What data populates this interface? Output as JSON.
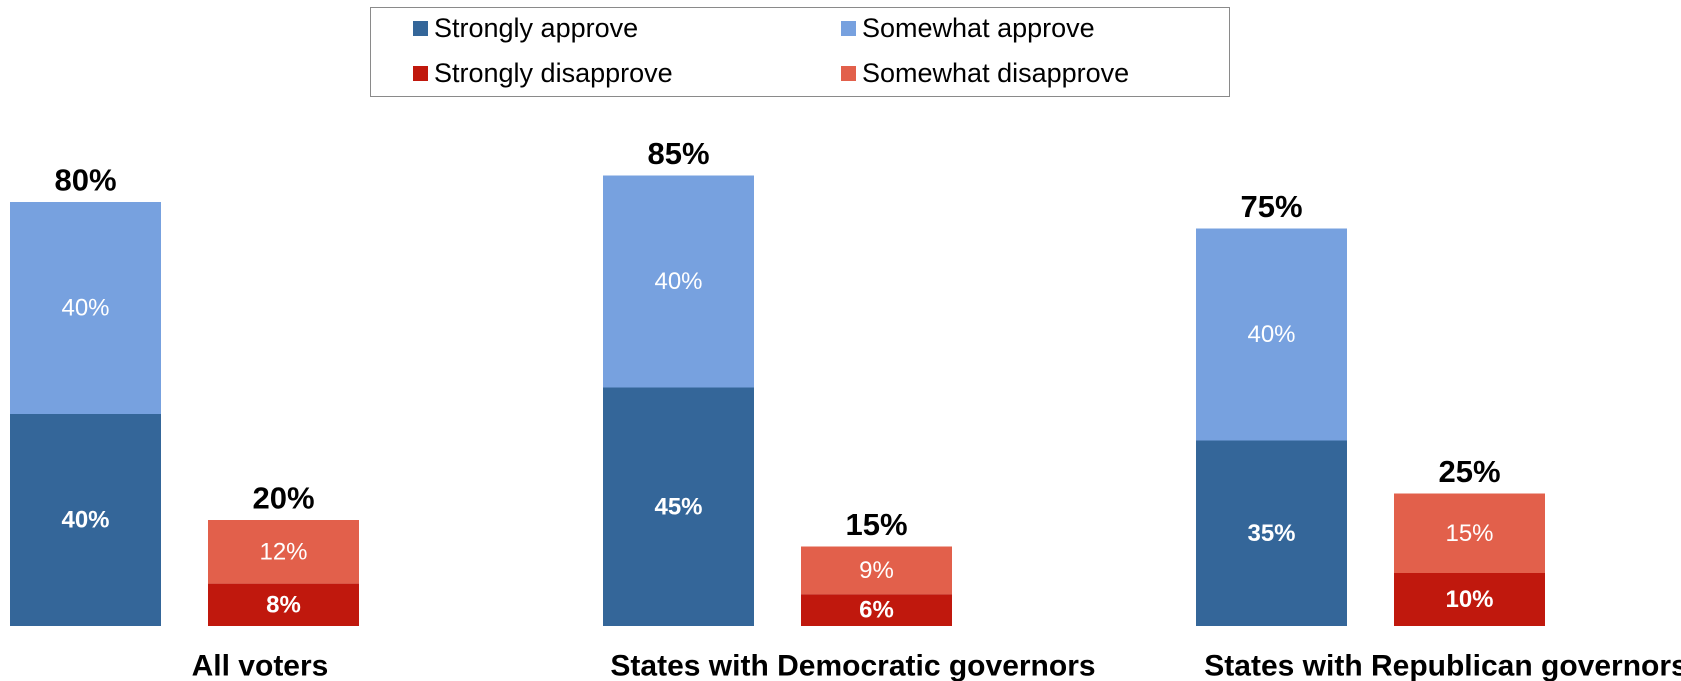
{
  "chart_data": {
    "type": "bar",
    "stacked": true,
    "groups": [
      {
        "label": "All voters",
        "approve": {
          "total_label": "80%",
          "segments": [
            {
              "series": "Strongly approve",
              "value": 40,
              "label": "40%"
            },
            {
              "series": "Somewhat approve",
              "value": 40,
              "label": "40%"
            }
          ]
        },
        "disapprove": {
          "total_label": "20%",
          "segments": [
            {
              "series": "Strongly disapprove",
              "value": 8,
              "label": "8%"
            },
            {
              "series": "Somewhat disapprove",
              "value": 12,
              "label": "12%"
            }
          ]
        }
      },
      {
        "label": "States with Democratic governors",
        "approve": {
          "total_label": "85%",
          "segments": [
            {
              "series": "Strongly approve",
              "value": 45,
              "label": "45%"
            },
            {
              "series": "Somewhat approve",
              "value": 40,
              "label": "40%"
            }
          ]
        },
        "disapprove": {
          "total_label": "15%",
          "segments": [
            {
              "series": "Strongly disapprove",
              "value": 6,
              "label": "6%"
            },
            {
              "series": "Somewhat disapprove",
              "value": 9,
              "label": "9%"
            }
          ]
        }
      },
      {
        "label": "States with Republican governors",
        "approve": {
          "total_label": "75%",
          "segments": [
            {
              "series": "Strongly approve",
              "value": 35,
              "label": "35%"
            },
            {
              "series": "Somewhat approve",
              "value": 40,
              "label": "40%"
            }
          ]
        },
        "disapprove": {
          "total_label": "25%",
          "segments": [
            {
              "series": "Strongly disapprove",
              "value": 10,
              "label": "10%"
            },
            {
              "series": "Somewhat disapprove",
              "value": 15,
              "label": "15%"
            }
          ]
        }
      }
    ],
    "legend": {
      "position": "top-center",
      "items": [
        {
          "name": "Strongly approve",
          "color": "#346699"
        },
        {
          "name": "Somewhat approve",
          "color": "#77a1df"
        },
        {
          "name": "Strongly disapprove",
          "color": "#c0180d"
        },
        {
          "name": "Somewhat disapprove",
          "color": "#e2604b"
        }
      ]
    },
    "colors": {
      "Strongly approve": "#346699",
      "Somewhat approve": "#77a1df",
      "Strongly disapprove": "#c0180d",
      "Somewhat disapprove": "#e2604b"
    },
    "bold_segment_labels": [
      "Strongly approve",
      "Strongly disapprove"
    ],
    "grid": false,
    "ylim": [
      0,
      100
    ]
  }
}
